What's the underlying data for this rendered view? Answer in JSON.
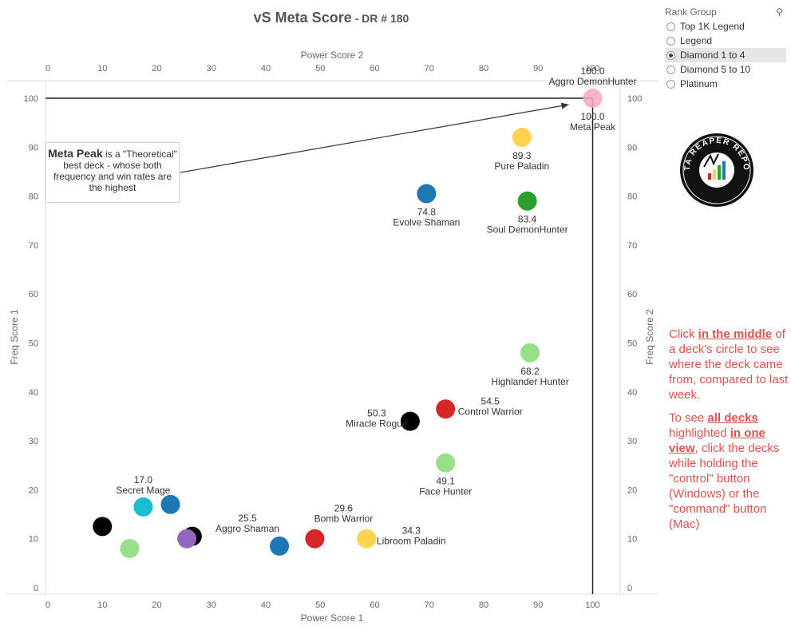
{
  "title": {
    "main": "vS Meta Score",
    "sep": " - ",
    "sub": "DR # 180"
  },
  "filter": {
    "header": "Rank Group",
    "search_icon": "search-icon",
    "options": [
      "Top 1K Legend",
      "Legend",
      "Diamond 1 to 4",
      "Diamond 5 to 10",
      "Platinum"
    ],
    "selected": "Diamond 1 to 4"
  },
  "annotation": {
    "bold": "Meta Peak",
    "text": " is a \"Theoretical\" best deck - whose both frequency and win rates are the highest"
  },
  "instructions": {
    "p1": [
      "Click ",
      "in the middle",
      " of a deck's circle to see where the deck came from, compared to last week."
    ],
    "p2": [
      "To see ",
      "all decks ",
      "highlighted ",
      "in one view",
      ", click the decks while holding the \"control\" button (Windows) or the \"command\" button (Mac)"
    ]
  },
  "logo": {
    "icon": "data-reaper-report-logo-icon",
    "text": "DATA REAPER REPORT"
  },
  "chart_data": {
    "type": "scatter",
    "xlabel": "Power Score 1",
    "x2label": "Power Score 2",
    "ylabel": "Freq Score 1",
    "y2label": "Freq Score 2",
    "xlim": [
      0,
      105
    ],
    "ylim": [
      0,
      105
    ],
    "xticks": [
      0,
      10,
      20,
      30,
      40,
      50,
      60,
      70,
      80,
      90,
      100
    ],
    "yticks": [
      0,
      10,
      20,
      30,
      40,
      50,
      60,
      70,
      80,
      90,
      100
    ],
    "reference_lines": {
      "x": 100,
      "y": 100
    },
    "points": [
      {
        "name": "Aggro DemonHunter",
        "score": "100.0",
        "x": 100,
        "y": 100,
        "color": "#f4a6c6",
        "label_pos": "above"
      },
      {
        "name": "Meta Peak",
        "score": "100.0",
        "x": 100,
        "y": 100,
        "color": "#f4a6c6",
        "label_pos": "below"
      },
      {
        "name": "Pure Paladin",
        "score": "89.3",
        "x": 87,
        "y": 92,
        "color": "#ffd34d",
        "label_pos": "below"
      },
      {
        "name": "Evolve Shaman",
        "score": "74.8",
        "x": 69.5,
        "y": 80.5,
        "color": "#1f77b4",
        "label_pos": "below"
      },
      {
        "name": "Soul DemonHunter",
        "score": "83.4",
        "x": 88,
        "y": 79,
        "color": "#2ca02c",
        "label_pos": "below"
      },
      {
        "name": "Highlander Hunter",
        "score": "68.2",
        "x": 88.5,
        "y": 48,
        "color": "#98df8a",
        "label_pos": "below"
      },
      {
        "name": "Control Warrior",
        "score": "54.5",
        "x": 73,
        "y": 36.5,
        "color": "#d62728",
        "label_pos": "right"
      },
      {
        "name": "Miracle Rogue",
        "score": "50.3",
        "x": 66.5,
        "y": 34,
        "color": "#000000",
        "label_pos": "left"
      },
      {
        "name": "Face Hunter",
        "score": "49.1",
        "x": 73,
        "y": 25.5,
        "color": "#98df8a",
        "label_pos": "below"
      },
      {
        "name": "Secret Mage",
        "score": "17.0",
        "x": 17.5,
        "y": 16.5,
        "color": "#17becf",
        "label_pos": "above"
      },
      {
        "name": "",
        "score": "",
        "x": 22.5,
        "y": 17,
        "color": "#1f77b4",
        "label_pos": "none"
      },
      {
        "name": "",
        "score": "",
        "x": 10,
        "y": 12.5,
        "color": "#000000",
        "label_pos": "none"
      },
      {
        "name": "",
        "score": "",
        "x": 15,
        "y": 8,
        "color": "#98df8a",
        "label_pos": "none"
      },
      {
        "name": "",
        "score": "",
        "x": 26.5,
        "y": 10.5,
        "color": "#000000",
        "label_pos": "none"
      },
      {
        "name": "",
        "score": "",
        "x": 25.5,
        "y": 10,
        "color": "#9467bd",
        "label_pos": "none"
      },
      {
        "name": "Aggro Shaman",
        "score": "25.5",
        "x": 42.5,
        "y": 8.5,
        "color": "#1f77b4",
        "label_pos": "upper-left"
      },
      {
        "name": "Bomb Warrior",
        "score": "29.6",
        "x": 49,
        "y": 10,
        "color": "#d62728",
        "label_pos": "upper-right"
      },
      {
        "name": "Libroom Paladin",
        "score": "34.3",
        "x": 58.5,
        "y": 10,
        "color": "#ffd34d",
        "label_pos": "right"
      }
    ]
  }
}
